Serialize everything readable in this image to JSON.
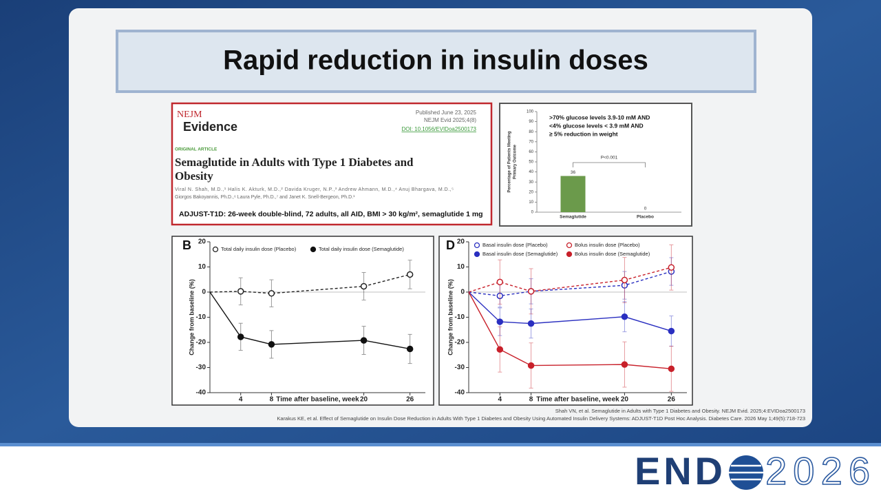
{
  "slide": {
    "title": "Rapid reduction in insulin doses"
  },
  "paper": {
    "journal_mark": "NEJM",
    "journal_name": "Evidence",
    "published": "Published June 23, 2025",
    "citation": "NEJM Evid 2025;4(8)",
    "doi": "DOI: 10.1056/EVIDoa2500173",
    "section": "ORIGINAL ARTICLE",
    "title_lines": [
      "Semaglutide in Adults with Type 1 Diabetes and",
      "Obesity"
    ],
    "author_lines": [
      "Viral N. Shah, M.D.,¹ Halis K. Akturk, M.D.,² Davida Kruger, N.P.,³ Andrew Ahmann, M.D.,⁴ Anuj Bhargava, M.D.,⁵",
      "Giorgos Bakoyannis, Ph.D.,⁶ Laura Pyle, Ph.D.,⁷ and Janet K. Snell-Bergeon, Ph.D.¹"
    ],
    "summary": "ADJUST-T1D: 26-week double-blind, 72 adults, all AID, BMI > 30 kg/m², semaglutide 1 mg"
  },
  "chart_data": [
    {
      "type": "bar",
      "ylabel_lines": [
        "Percentage of Patients Meeting",
        "Primary Outcome"
      ],
      "categories": [
        "Semaglutide",
        "Placebo"
      ],
      "values": [
        36,
        0
      ],
      "color": "#6b9a4b",
      "ylim": [
        0,
        100
      ],
      "yticks": [
        0,
        10,
        20,
        30,
        40,
        50,
        60,
        70,
        80,
        90,
        100
      ],
      "annotations": [
        ">70% glucose levels 3.9-10 mM AND",
        "<4% glucose levels < 3.9 mM AND",
        "≥ 5% reduction in weight"
      ],
      "p_value": "P<0.001"
    },
    {
      "type": "line",
      "panel": "B",
      "ylabel": "Change from baseline (%)",
      "xlabel": "Time after baseline, week",
      "x": [
        0,
        4,
        8,
        20,
        26
      ],
      "xlim": [
        0,
        28
      ],
      "xticks": [
        4,
        8,
        20,
        26
      ],
      "ylim": [
        -40,
        20
      ],
      "yticks": [
        -40,
        -30,
        -20,
        -10,
        0,
        10,
        20
      ],
      "zero_line": true,
      "series": [
        {
          "name": "Total daily insulin dose (Placebo)",
          "color": "#222222",
          "dashed": true,
          "marker": "open",
          "values": [
            0,
            0.3,
            -0.5,
            2.3,
            7.0
          ],
          "errors": [
            null,
            5.4,
            5.4,
            5.5,
            5.7
          ]
        },
        {
          "name": "Total daily insulin dose (Semaglutide)",
          "color": "#111111",
          "dashed": false,
          "marker": "filled",
          "values": [
            0,
            -17.8,
            -20.8,
            -19.2,
            -22.6
          ],
          "errors": [
            null,
            5.4,
            5.5,
            5.6,
            5.8
          ]
        }
      ]
    },
    {
      "type": "line",
      "panel": "D",
      "ylabel": "Change from baseline (%)",
      "xlabel": "Time after baseline, week",
      "x": [
        0,
        4,
        8,
        20,
        26
      ],
      "xlim": [
        0,
        28
      ],
      "xticks": [
        4,
        8,
        20,
        26
      ],
      "ylim": [
        -40,
        20
      ],
      "yticks": [
        -40,
        -30,
        -20,
        -10,
        0,
        10,
        20
      ],
      "zero_line": true,
      "series": [
        {
          "name": "Basal insulin dose (Placebo)",
          "color": "#2a2fc0",
          "dashed": true,
          "marker": "open",
          "values": [
            0,
            -1.5,
            0.3,
            2.7,
            8.2
          ],
          "errors": [
            null,
            4.5,
            5.0,
            5.5,
            5.5
          ]
        },
        {
          "name": "Bolus insulin dose (Placebo)",
          "color": "#c8202a",
          "dashed": true,
          "marker": "open",
          "values": [
            0,
            4.0,
            0.3,
            4.8,
            9.8
          ],
          "errors": [
            null,
            8.8,
            9.0,
            9.0,
            9.0
          ]
        },
        {
          "name": "Basal insulin dose (Semaglutide)",
          "color": "#2a2fc0",
          "dashed": false,
          "marker": "filled",
          "values": [
            0,
            -11.8,
            -12.5,
            -9.8,
            -15.5
          ],
          "errors": [
            null,
            5.5,
            5.8,
            6.0,
            6.0
          ]
        },
        {
          "name": "Bolus insulin dose (Semaglutide)",
          "color": "#c8202a",
          "dashed": false,
          "marker": "filled",
          "values": [
            0,
            -22.8,
            -29.2,
            -28.8,
            -30.5
          ],
          "errors": [
            null,
            9.0,
            9.0,
            9.0,
            9.0
          ]
        }
      ]
    }
  ],
  "references": [
    "Shah VN, et al. Semaglutide in Adults with Type 1 Diabetes and Obesity. NEJM Evid. 2025;4:EVIDoa2500173",
    "Karakus KE, et al. Effect of Semaglutide on Insulin Dose Reduction in Adults With Type 1 Diabetes and Obesity Using Automated Insulin Delivery Systems: ADJUST-T1D Post Hoc Analysis. Diabetes Care. 2026 May 1;49(5):718-723"
  ],
  "logo": {
    "left": "END",
    "right": "2026"
  }
}
